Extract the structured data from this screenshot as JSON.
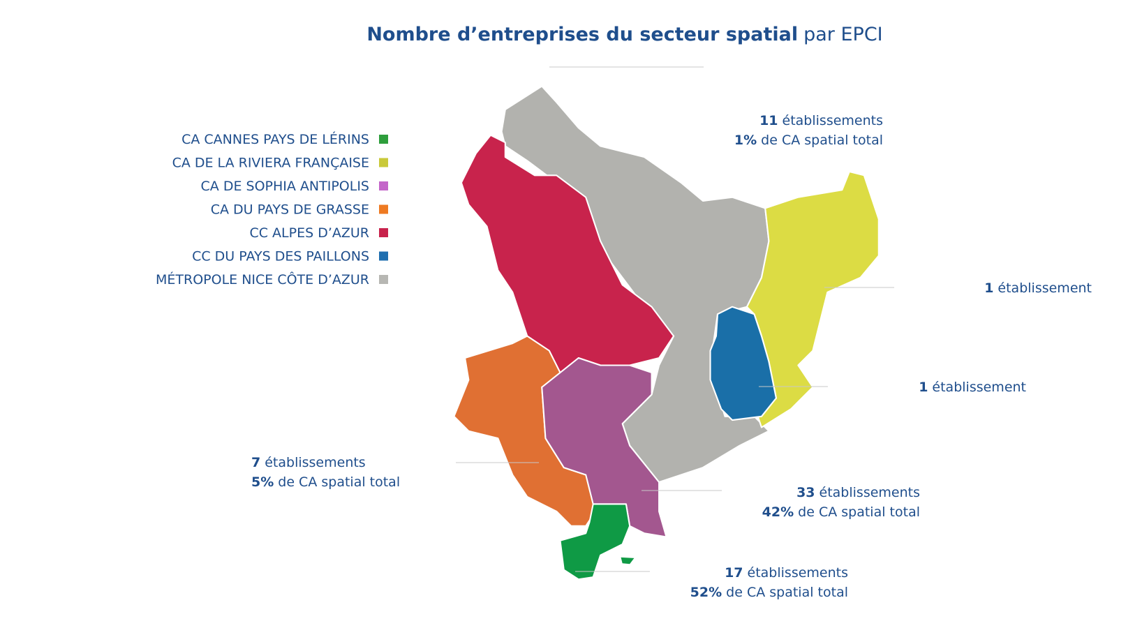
{
  "title": {
    "bold": "Nombre d’entreprises du secteur spatial",
    "rest": "par EPCI"
  },
  "legend": [
    {
      "label": "CA CANNES PAYS DE LÉRINS",
      "color": "#2e9e3c"
    },
    {
      "label": "CA DE LA RIVIERA FRANÇAISE",
      "color": "#c9c93a"
    },
    {
      "label": "CA DE SOPHIA ANTIPOLIS",
      "color": "#c466c9"
    },
    {
      "label": "CA DU PAYS DE GRASSE",
      "color": "#ee7a22"
    },
    {
      "label": "CC ALPES D’AZUR",
      "color": "#c8234c"
    },
    {
      "label": "CC DU PAYS DES PAILLONS",
      "color": "#1f6fb0"
    },
    {
      "label": "MÉTROPOLE NICE CÔTE D’AZUR",
      "color": "#b7b7b3"
    }
  ],
  "annotations": [
    {
      "count": "11",
      "count_text": "établissements",
      "share": "1%",
      "share_text": "de CA spatial total"
    },
    {
      "count": "1",
      "count_text": "établissement"
    },
    {
      "count": "1",
      "count_text": "établissement"
    },
    {
      "count": "7",
      "count_text": "établissements",
      "share": "5%",
      "share_text": "de CA spatial total"
    },
    {
      "count": "33",
      "count_text": "établissements",
      "share": "42%",
      "share_text": "de CA spatial total"
    },
    {
      "count": "17",
      "count_text": "établissements",
      "share": "52%",
      "share_text": "de CA spatial total"
    }
  ]
}
